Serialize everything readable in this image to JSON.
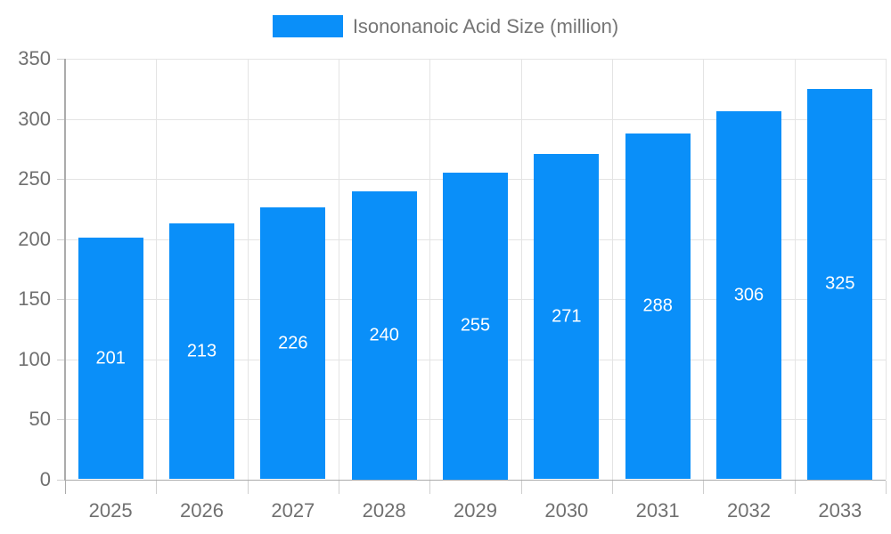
{
  "legend": {
    "label": "Isononanoic Acid Size (million)"
  },
  "colors": {
    "bar": "#0a8ff9",
    "grid": "#e4e4e4",
    "axis": "#ababab",
    "tick": "#cfcfcf",
    "tick_text": "#707070",
    "legend_text": "#757575",
    "value_label": "#ffffff",
    "background": "#ffffff"
  },
  "chart_data": {
    "type": "bar",
    "title": "Isononanoic Acid Size (million)",
    "categories": [
      "2025",
      "2026",
      "2027",
      "2028",
      "2029",
      "2030",
      "2031",
      "2032",
      "2033"
    ],
    "values": [
      201,
      213,
      226,
      240,
      255,
      271,
      288,
      306,
      325
    ],
    "series_name": "Isononanoic Acid Size (million)",
    "xlabel": "",
    "ylabel": "",
    "ylim": [
      0,
      350
    ],
    "yticks": [
      0,
      50,
      100,
      150,
      200,
      250,
      300,
      350
    ],
    "grid": true,
    "legend_position": "top",
    "value_labels": "inside-center"
  }
}
